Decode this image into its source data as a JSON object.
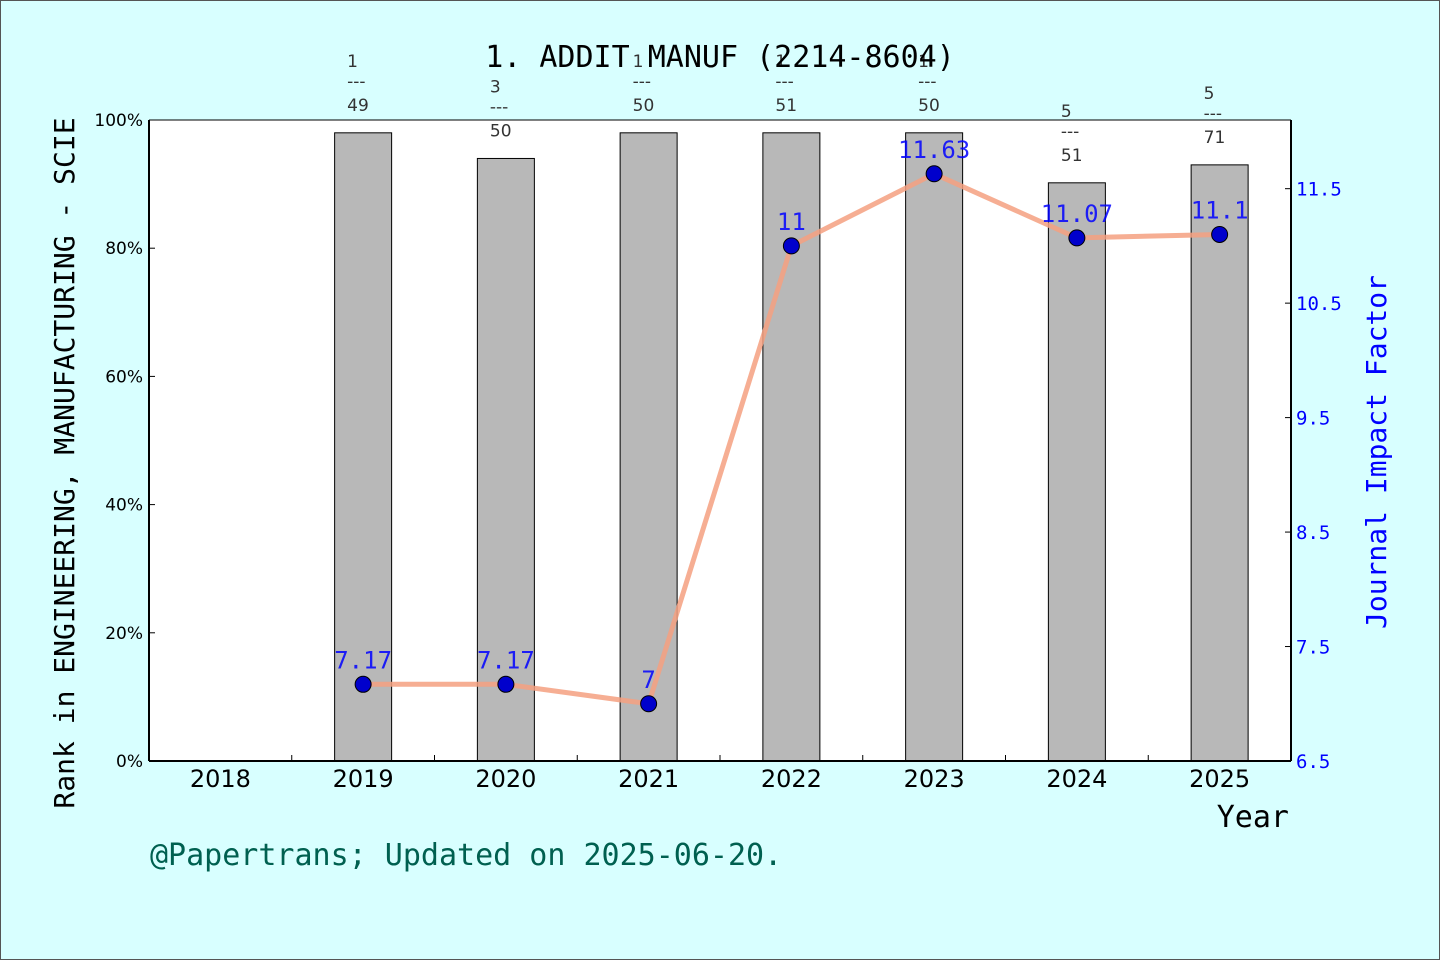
{
  "chart_data": {
    "type": "bar",
    "title": "1. ADDIT MANUF (2214-8604)",
    "xlabel": "Year",
    "ylabel_left": "Rank in ENGINEERING, MANUFACTURING - SCIE",
    "ylabel_right": "Journal Impact Factor",
    "categories": [
      "2018",
      "2019",
      "2020",
      "2021",
      "2022",
      "2023",
      "2024",
      "2025"
    ],
    "y_left_ticks": [
      "0%",
      "20%",
      "40%",
      "60%",
      "80%",
      "100%"
    ],
    "y_left_range": [
      0,
      100
    ],
    "y_right_ticks": [
      "6.5",
      "7.5",
      "8.5",
      "9.5",
      "10.5",
      "11.5"
    ],
    "y_right_range": [
      6.5,
      12.1
    ],
    "series": [
      {
        "kind": "bar",
        "values": [
          null,
          98,
          94,
          98,
          98,
          98,
          90.2,
          93
        ],
        "rank_labels": [
          null,
          {
            "rank": "1",
            "total": "49"
          },
          {
            "rank": "3",
            "total": "50"
          },
          {
            "rank": "1",
            "total": "50"
          },
          {
            "rank": "1",
            "total": "51"
          },
          {
            "rank": "1",
            "total": "50"
          },
          {
            "rank": "5",
            "total": "51"
          },
          {
            "rank": "5",
            "total": "71"
          }
        ]
      },
      {
        "kind": "line",
        "axis": "right",
        "values": [
          null,
          7.17,
          7.17,
          7.0,
          11.0,
          11.63,
          11.07,
          11.1
        ],
        "labels": [
          null,
          "7.17",
          "7.17",
          "7",
          "11",
          "11.63",
          "11.07",
          "11.1"
        ]
      }
    ],
    "grid": false,
    "colors": {
      "background": "#d8ffff",
      "plot_background": "#ffffff",
      "bar": "#b8b8b8",
      "line": "#f4a080",
      "marker": "#0000cc",
      "right_axis": "#0000ff",
      "footer": "#006050"
    }
  },
  "footer": "@Papertrans; Updated on 2025-06-20."
}
